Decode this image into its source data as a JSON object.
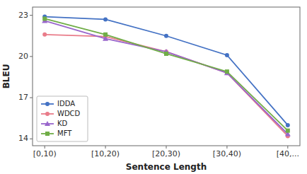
{
  "chart_data": {
    "type": "line",
    "categories": [
      "[0,10)",
      "[10,20)",
      "[20,30)",
      "[30,40)",
      "[40,..."
    ],
    "series": [
      {
        "name": "IDDA",
        "color": "#4472C4",
        "marker": "circle",
        "values": [
          22.9,
          22.7,
          21.5,
          20.1,
          15.0
        ]
      },
      {
        "name": "WDCD",
        "color": "#E97C8A",
        "marker": "circle",
        "values": [
          21.6,
          21.45,
          20.35,
          18.8,
          14.2
        ]
      },
      {
        "name": "KD",
        "color": "#9966CC",
        "marker": "triangle",
        "values": [
          22.6,
          21.3,
          20.35,
          18.8,
          14.35
        ]
      },
      {
        "name": "MFT",
        "color": "#70AD47",
        "marker": "square",
        "values": [
          22.75,
          21.6,
          20.2,
          18.9,
          14.6
        ]
      }
    ],
    "x_label": "Sentence Length",
    "y_label": "BLEU",
    "ylim": [
      13.5,
      23.6
    ],
    "yticks": [
      14,
      17,
      20,
      23
    ],
    "legend": "lower left",
    "grid": false
  }
}
